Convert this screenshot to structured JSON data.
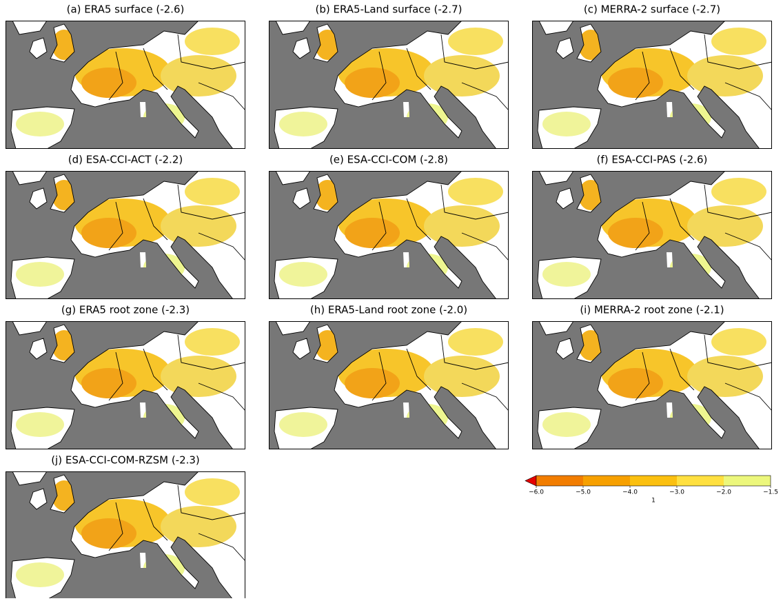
{
  "panels": [
    {
      "title": "(a) ERA5 surface (-2.6)"
    },
    {
      "title": "(b) ERA5-Land surface (-2.7)"
    },
    {
      "title": "(c) MERRA-2 surface (-2.7)"
    },
    {
      "title": "(d) ESA-CCI-ACT (-2.2)"
    },
    {
      "title": "(e) ESA-CCI-COM (-2.8)"
    },
    {
      "title": "(f) ESA-CCI-PAS (-2.6)"
    },
    {
      "title": "(g) ERA5 root zone (-2.3)"
    },
    {
      "title": "(h) ERA5-Land root zone (-2.0)"
    },
    {
      "title": "(i) MERRA-2 root zone (-2.1)"
    },
    {
      "title": "(j) ESA-CCI-COM-RZSM (-2.3)"
    }
  ],
  "colorbar": {
    "ticks": [
      {
        "value": -6.0,
        "label": "−6.0"
      },
      {
        "value": -5.0,
        "label": "−5.0"
      },
      {
        "value": -4.0,
        "label": "−4.0"
      },
      {
        "value": -3.0,
        "label": "−3.0"
      },
      {
        "value": -2.0,
        "label": "−2.0"
      },
      {
        "value": -1.5,
        "label": "−1.5"
      }
    ],
    "colors": [
      "#f27d00",
      "#f7a000",
      "#fbc010",
      "#ffe040",
      "#ecf77c"
    ],
    "extend_color": "#e60000",
    "label": "1"
  }
}
